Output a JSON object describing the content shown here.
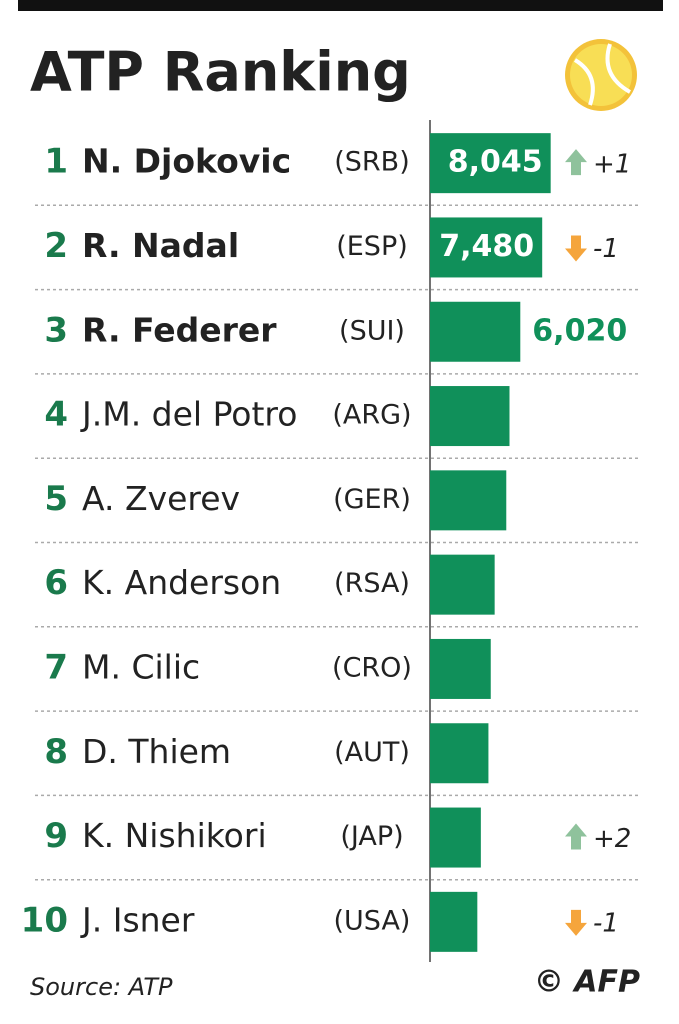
{
  "chart_data": {
    "type": "bar",
    "title": "ATP Ranking",
    "ranks": [
      "1",
      "2",
      "3",
      "4",
      "5",
      "6",
      "7",
      "8",
      "9",
      "10"
    ],
    "categories": [
      "N. Djokovic",
      "R. Nadal",
      "R. Federer",
      "J.M. del Potro",
      "A. Zverev",
      "K. Anderson",
      "M. Cilic",
      "D. Thiem",
      "K. Nishikori",
      "J. Isner"
    ],
    "countries": [
      "(SRB)",
      "(ESP)",
      "(SUI)",
      "(ARG)",
      "(GER)",
      "(RSA)",
      "(CRO)",
      "(AUT)",
      "(JAP)",
      "(USA)"
    ],
    "values": [
      8045,
      7480,
      6020,
      5300,
      5085,
      4310,
      4050,
      3895,
      3390,
      3155
    ],
    "value_labels": [
      "8,045",
      "7,480",
      "6,020",
      null,
      null,
      null,
      null,
      null,
      null,
      null
    ],
    "changes": [
      "+1",
      "-1",
      null,
      null,
      null,
      null,
      null,
      null,
      "+2",
      "-1"
    ],
    "color": "#10905a",
    "xlim": [
      0,
      16000
    ],
    "source": "Source: ATP",
    "credit": "© AFP"
  }
}
